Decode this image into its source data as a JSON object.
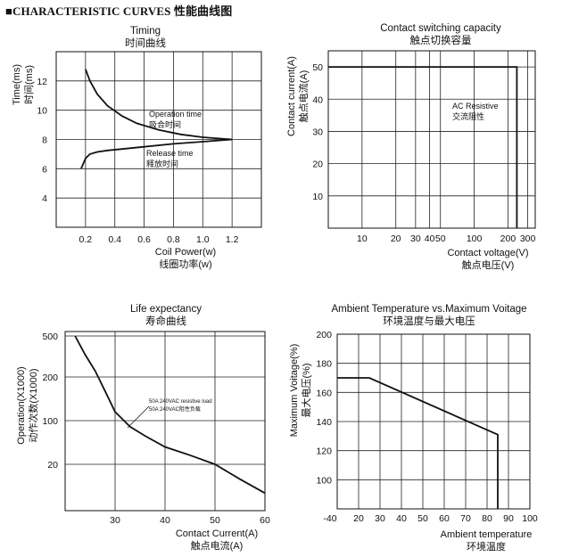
{
  "page": {
    "header": "■CHARACTERISTIC CURVES 性能曲线图"
  },
  "chart_data": [
    {
      "type": "line",
      "title": "Timing",
      "subtitle": "时间曲线",
      "xlabel": "Coil Power(w)",
      "xlabel_cn": "线圈功率(w)",
      "ylabel": "Time(ms)",
      "ylabel_cn": "时间(ms)",
      "xlim": [
        0,
        1.4
      ],
      "ylim": [
        2,
        14
      ],
      "x_ticks": [
        "0.2",
        "0.4",
        "0.6",
        "0.8",
        "1.0",
        "1.2"
      ],
      "y_ticks": [
        "4",
        "6",
        "8",
        "10",
        "12"
      ],
      "series": [
        {
          "name": "Operation time",
          "name_cn": "吸合时间",
          "x": [
            0.2,
            0.23,
            0.28,
            0.35,
            0.45,
            0.55,
            0.7,
            0.85,
            1.0,
            1.2
          ],
          "y": [
            12.8,
            12.0,
            11.1,
            10.3,
            9.6,
            9.1,
            8.65,
            8.35,
            8.15,
            8.0
          ]
        },
        {
          "name": "Release time",
          "name_cn": "释放时间",
          "x": [
            0.17,
            0.2,
            0.23,
            0.28,
            0.35,
            0.45,
            0.6,
            0.8,
            1.0,
            1.2
          ],
          "y": [
            6.0,
            6.7,
            7.0,
            7.15,
            7.25,
            7.35,
            7.5,
            7.7,
            7.85,
            8.0
          ]
        }
      ]
    },
    {
      "type": "line",
      "title": "Contact switching capacity",
      "subtitle": "触点切换容量",
      "xlabel": "Contact voltage(V)",
      "xlabel_cn": "触点电压(V)",
      "ylabel": "Contact current(A)",
      "ylabel_cn": "触点电流(A)",
      "x_scale": "log",
      "xlim": [
        5,
        350
      ],
      "ylim": [
        0,
        55
      ],
      "x_ticks": [
        "10",
        "20",
        "30",
        "40",
        "50",
        "100",
        "200",
        "300"
      ],
      "y_ticks": [
        "10",
        "20",
        "30",
        "40",
        "50"
      ],
      "series": [
        {
          "name": "AC Resistive",
          "name_cn": "交流阻性",
          "x": [
            5,
            240,
            240
          ],
          "y": [
            50,
            50,
            0
          ]
        }
      ]
    },
    {
      "type": "line",
      "title": "Life expectancy",
      "subtitle": "寿命曲线",
      "xlabel": "Contact Current(A)",
      "xlabel_cn": "触点电流(A)",
      "ylabel": "Operation(X1000)",
      "ylabel_cn": "动作次数(X1000)",
      "xlim": [
        20,
        60
      ],
      "y_ticks": [
        "20",
        "100",
        "200",
        "500"
      ],
      "x_ticks": [
        "30",
        "40",
        "50",
        "60"
      ],
      "series": [
        {
          "name": "50A 240VAC resistive load",
          "name_cn": "50A 240VAC阻性负载",
          "x": [
            22,
            24,
            26,
            28,
            30,
            33,
            36,
            40,
            45,
            50,
            55,
            60
          ],
          "y": [
            500,
            330,
            230,
            160,
            115,
            80,
            57,
            38,
            28,
            20,
            16,
            13
          ]
        }
      ]
    },
    {
      "type": "line",
      "title": "Ambient Temperature vs.Maximum Voitage",
      "subtitle": "环境温度与最大电压",
      "xlabel": "Ambient temperature",
      "xlabel_cn": "环境温度",
      "ylabel": "Maximum Voitage(%)",
      "ylabel_cn": "最大电压(%)",
      "xlim": [
        -40,
        100
      ],
      "ylim": [
        80,
        200
      ],
      "x_ticks": [
        "-40",
        "20",
        "30",
        "40",
        "50",
        "60",
        "70",
        "80",
        "90",
        "100"
      ],
      "y_ticks": [
        "100",
        "120",
        "140",
        "160",
        "180",
        "200"
      ],
      "series": [
        {
          "name": "Maximum voltage",
          "x": [
            -40,
            25,
            85,
            85
          ],
          "y": [
            170,
            170,
            131,
            80
          ]
        }
      ]
    }
  ]
}
